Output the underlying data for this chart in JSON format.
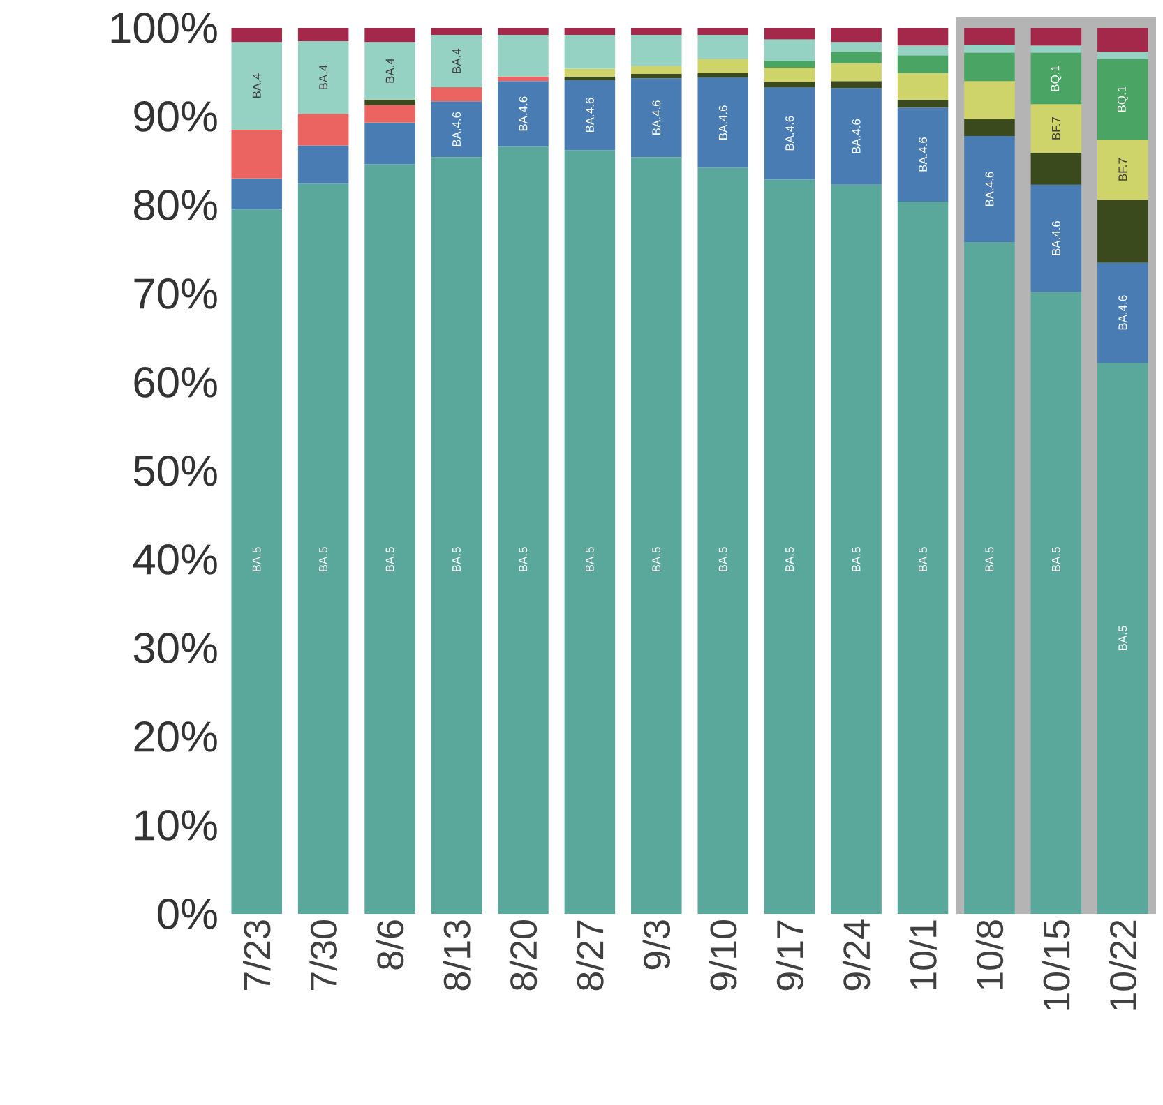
{
  "chart_data": {
    "type": "bar",
    "stacked": true,
    "categories": [
      "7/23",
      "7/30",
      "8/6",
      "8/13",
      "8/20",
      "8/27",
      "9/3",
      "9/10",
      "9/17",
      "9/24",
      "10/1",
      "10/8",
      "10/15",
      "10/22"
    ],
    "series": [
      {
        "name": "BA.5",
        "color": "#5aa89c",
        "values": [
          79.5,
          82.4,
          84.6,
          85.4,
          86.6,
          86.2,
          85.4,
          84.2,
          82.9,
          82.3,
          80.4,
          75.8,
          70.2,
          62.2
        ]
      },
      {
        "name": "BA.4.6",
        "color": "#4a7cb4",
        "values": [
          3.5,
          4.3,
          4.7,
          6.3,
          7.4,
          7.9,
          8.9,
          10.2,
          10.4,
          10.9,
          10.6,
          12.0,
          12.1,
          11.3
        ]
      },
      {
        "color": "#ec6461",
        "values": [
          5.5,
          3.6,
          2.0,
          1.6,
          0.5,
          null,
          null,
          null,
          null,
          null,
          null,
          null,
          null,
          null
        ]
      },
      {
        "color": "#3a4a1c",
        "values": [
          null,
          null,
          0.6,
          null,
          null,
          0.4,
          0.5,
          0.5,
          0.6,
          0.8,
          0.9,
          1.9,
          3.6,
          7.1
        ]
      },
      {
        "name": "BF.7",
        "color": "#cfd46a",
        "values": [
          null,
          null,
          null,
          null,
          null,
          0.9,
          0.9,
          1.6,
          1.6,
          2.0,
          3.0,
          4.3,
          5.5,
          6.8
        ]
      },
      {
        "name": "BQ.1",
        "color": "#4aa463",
        "values": [
          null,
          null,
          null,
          null,
          null,
          null,
          null,
          null,
          0.8,
          1.3,
          2.0,
          3.2,
          5.8,
          9.1
        ]
      },
      {
        "name": "BA.4",
        "color": "#96d2c4",
        "values": [
          9.9,
          8.2,
          6.5,
          5.9,
          4.7,
          3.8,
          3.5,
          2.7,
          2.4,
          1.1,
          1.1,
          0.9,
          0.8,
          0.8
        ]
      },
      {
        "color": "#a3284a",
        "values": [
          1.6,
          1.5,
          1.6,
          0.8,
          0.8,
          0.8,
          0.8,
          0.8,
          1.3,
          1.6,
          2.0,
          1.9,
          2.0,
          2.7
        ]
      }
    ],
    "ylim": [
      0,
      100
    ],
    "yticks": [
      {
        "value": 0,
        "label": "0%"
      },
      {
        "value": 10,
        "label": "10%"
      },
      {
        "value": 20,
        "label": "20%"
      },
      {
        "value": 30,
        "label": "30%"
      },
      {
        "value": 40,
        "label": "40%"
      },
      {
        "value": 50,
        "label": "50%"
      },
      {
        "value": 60,
        "label": "60%"
      },
      {
        "value": 70,
        "label": "70%"
      },
      {
        "value": 80,
        "label": "80%"
      },
      {
        "value": 90,
        "label": "90%"
      },
      {
        "value": 100,
        "label": "100%"
      }
    ],
    "bands": [
      {
        "axis": "x",
        "from": "10/8",
        "to": "10/22",
        "color": "#b4b4b4"
      }
    ]
  }
}
